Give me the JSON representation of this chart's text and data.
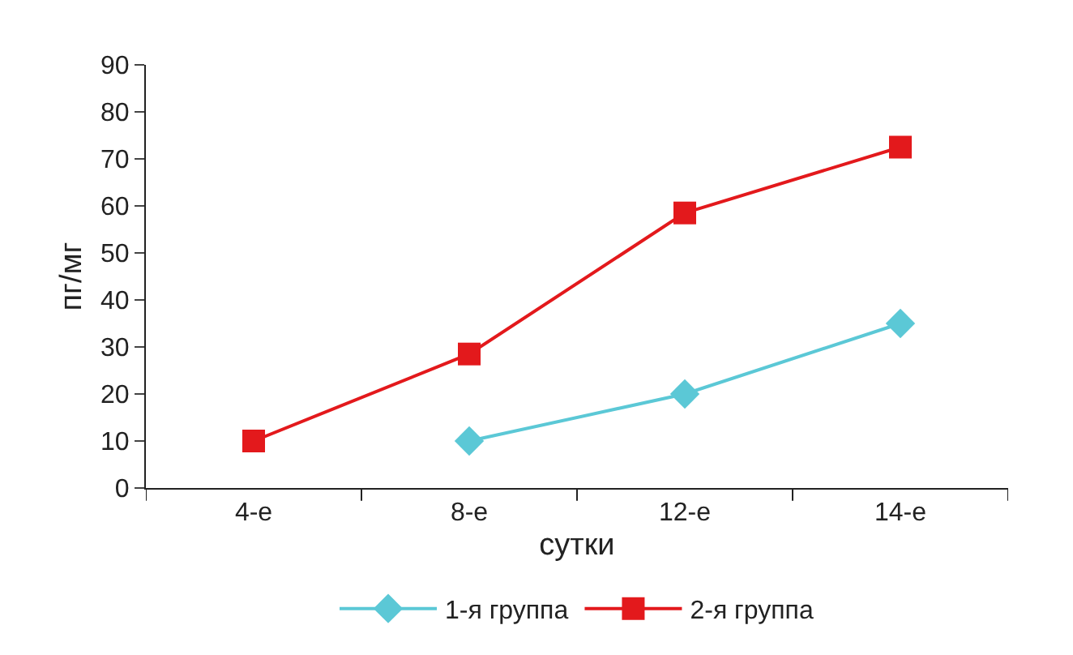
{
  "chart_data": {
    "type": "line",
    "xlabel": "сутки",
    "ylabel": "пг/мг",
    "categories": [
      "4-е",
      "8-е",
      "12-е",
      "14-е"
    ],
    "series": [
      {
        "name": "1-я группа",
        "color": "#5bc8d6",
        "marker": "diamond",
        "values": [
          null,
          10,
          20,
          35
        ]
      },
      {
        "name": "2-я группа",
        "color": "#e3191c",
        "marker": "square",
        "values": [
          10,
          28.5,
          58.5,
          72.5
        ]
      }
    ],
    "ylim": [
      0,
      90
    ],
    "yticks": [
      0,
      10,
      20,
      30,
      40,
      50,
      60,
      70,
      80,
      90
    ],
    "grid": false,
    "legend": "bottom",
    "line_style": "solid"
  }
}
